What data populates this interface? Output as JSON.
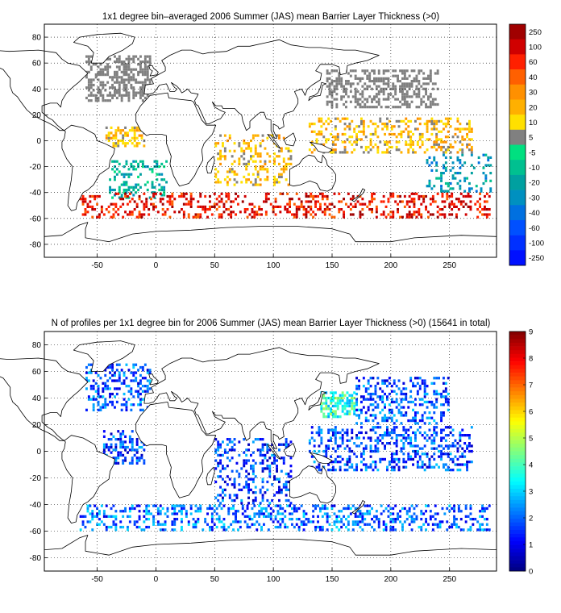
{
  "chart_data": [
    {
      "type": "heatmap",
      "title": "1x1 degree bin–averaged 2006 Summer (JAS) mean Barrier Layer Thickness (>0)",
      "xlim": [
        -95,
        290
      ],
      "ylim": [
        -90,
        90
      ],
      "xticks": [
        -50,
        0,
        50,
        100,
        150,
        200,
        250
      ],
      "yticks": [
        80,
        60,
        40,
        20,
        0,
        -20,
        -40,
        -60,
        -80
      ],
      "grid": true,
      "colorbar": {
        "labels": [
          "250",
          "100",
          "60",
          "40",
          "30",
          "20",
          "10",
          "5",
          "-5",
          "-10",
          "-20",
          "-30",
          "-40",
          "-60",
          "-100",
          "-250"
        ],
        "colors": [
          "#a00000",
          "#d00000",
          "#ff2000",
          "#ff6000",
          "#ff9000",
          "#ffb000",
          "#ffe000",
          "#808080",
          "#00e080",
          "#00c090",
          "#00a0a0",
          "#0090c0",
          "#0070e0",
          "#0050ff",
          "#0030ff",
          "#0010ff"
        ]
      },
      "regions": [
        {
          "name": "north-atlantic",
          "lon": [
            -60,
            -5
          ],
          "lat": [
            30,
            65
          ],
          "category": "5",
          "density": 0.55
        },
        {
          "name": "north-pacific",
          "lon": [
            145,
            240
          ],
          "lat": [
            25,
            55
          ],
          "category": "5",
          "density": 0.45
        },
        {
          "name": "tropical-atlantic",
          "lon": [
            -45,
            -10
          ],
          "lat": [
            -5,
            10
          ],
          "category": "10",
          "density": 0.45
        },
        {
          "name": "tropical-pacific",
          "lon": [
            130,
            270
          ],
          "lat": [
            -10,
            18
          ],
          "category": "10",
          "density": 0.35
        },
        {
          "name": "indian-ocean",
          "lon": [
            50,
            115
          ],
          "lat": [
            -35,
            5
          ],
          "category": "10",
          "density": 0.25
        },
        {
          "name": "south-atlantic",
          "lon": [
            -40,
            10
          ],
          "lat": [
            -45,
            -15
          ],
          "category": "-20",
          "density": 0.3
        },
        {
          "name": "southern-ocean",
          "lon": [
            -65,
            285
          ],
          "lat": [
            -60,
            -40
          ],
          "category": "60",
          "density": 0.3
        },
        {
          "name": "eastern-pacific",
          "lon": [
            230,
            285
          ],
          "lat": [
            -40,
            -10
          ],
          "category": "-30",
          "density": 0.25
        }
      ]
    },
    {
      "type": "heatmap",
      "title": "N of profiles per 1x1 degree bin for 2006 Summer (JAS) mean Barrier Layer Thickness (>0) (15641 in total)",
      "xlim": [
        -95,
        290
      ],
      "ylim": [
        -90,
        90
      ],
      "xticks": [
        -50,
        0,
        50,
        100,
        150,
        200,
        250
      ],
      "yticks": [
        80,
        60,
        40,
        20,
        0,
        -20,
        -40,
        -60,
        -80
      ],
      "grid": true,
      "colorbar": {
        "range": [
          0,
          9
        ],
        "labels": [
          "9",
          "8",
          "7",
          "6",
          "5",
          "4",
          "3",
          "2",
          "1",
          "0"
        ]
      },
      "regions": [
        {
          "name": "north-atlantic",
          "lon": [
            -60,
            -5
          ],
          "lat": [
            30,
            65
          ],
          "value": 1.6,
          "density": 0.4
        },
        {
          "name": "kuroshio",
          "lon": [
            140,
            170
          ],
          "lat": [
            25,
            45
          ],
          "value": 3.5,
          "density": 0.6
        },
        {
          "name": "north-pacific",
          "lon": [
            170,
            250
          ],
          "lat": [
            20,
            55
          ],
          "value": 1.6,
          "density": 0.35
        },
        {
          "name": "tropical-atlantic",
          "lon": [
            -45,
            -10
          ],
          "lat": [
            -10,
            15
          ],
          "value": 1.4,
          "density": 0.45
        },
        {
          "name": "tropical-pacific",
          "lon": [
            130,
            270
          ],
          "lat": [
            -15,
            18
          ],
          "value": 1.5,
          "density": 0.35
        },
        {
          "name": "indian-ocean",
          "lon": [
            50,
            115
          ],
          "lat": [
            -40,
            10
          ],
          "value": 1.4,
          "density": 0.3
        },
        {
          "name": "southern-ocean",
          "lon": [
            -65,
            285
          ],
          "lat": [
            -60,
            -40
          ],
          "value": 1.8,
          "density": 0.35
        }
      ]
    }
  ]
}
